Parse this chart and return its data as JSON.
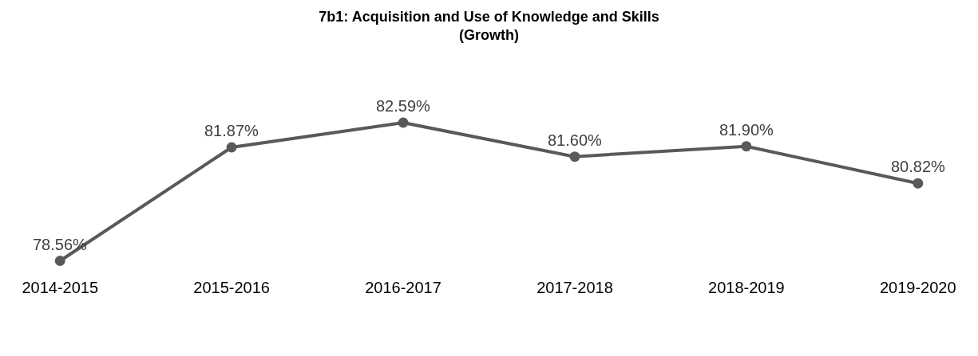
{
  "chart_data": {
    "type": "line",
    "title": "7b1: Acquisition and Use of Knowledge and Skills\n(Growth)",
    "categories": [
      "2014-2015",
      "2015-2016",
      "2016-2017",
      "2017-2018",
      "2018-2019",
      "2019-2020"
    ],
    "series": [
      {
        "color": "#595959",
        "values": [
          78.56,
          81.87,
          82.59,
          81.6,
          81.9,
          80.82
        ],
        "value_labels": [
          "78.56%",
          "81.87%",
          "82.59%",
          "81.60%",
          "81.90%",
          "80.82%"
        ]
      }
    ],
    "tick_labels": "x",
    "grid": false,
    "legend": false,
    "marker": "circle",
    "line_style": "solid"
  }
}
